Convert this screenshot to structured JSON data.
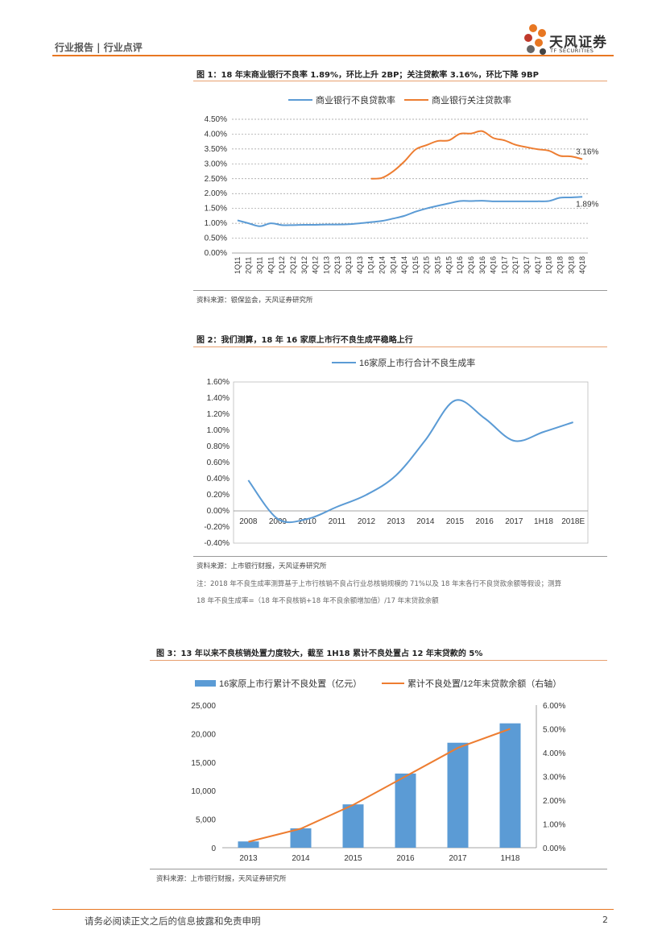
{
  "header": {
    "text": "行业报告 | 行业点评",
    "logo_cn": "天风证券",
    "logo_en": "TF SECURITIES"
  },
  "figures": {
    "fig1": {
      "title": "图 1：18 年末商业银行不良率 1.89%，环比上升 2BP；关注贷款率 3.16%，环比下降 9BP",
      "source": "资料来源：银保监会，天风证券研究所"
    },
    "fig2": {
      "title": "图 2：我们测算，18 年 16 家原上市行不良生成平稳略上行",
      "source": "资料来源：上市银行财报，天风证券研究所",
      "note1": "注：2018 年不良生成率测算基于上市行核销不良占行业总核销规模的 71%以及 18 年末各行不良贷款余额等假设；测算",
      "note2": "18 年不良生成率=（18 年不良核销+18 年不良余额增加值）/17 年末贷款余额"
    },
    "fig3": {
      "title": "图 3：13 年以来不良核销处置力度较大，截至 1H18 累计不良处置占 12 年末贷款的 5%",
      "source": "资料来源：上市银行财报，天风证券研究所"
    }
  },
  "footer": {
    "disclaimer": "请务必阅读正文之后的信息披露和免责申明",
    "page": "2"
  },
  "colors": {
    "blue": "#5B9BD5",
    "orange": "#ED7D31",
    "accent": "#E87722"
  },
  "chart_data": [
    {
      "type": "line",
      "categories": [
        "1Q11",
        "2Q11",
        "3Q11",
        "4Q11",
        "1Q12",
        "2Q12",
        "3Q12",
        "4Q12",
        "1Q13",
        "2Q13",
        "3Q13",
        "4Q13",
        "1Q14",
        "2Q14",
        "3Q14",
        "4Q14",
        "1Q15",
        "2Q15",
        "3Q15",
        "4Q15",
        "1Q16",
        "2Q16",
        "3Q16",
        "4Q16",
        "1Q17",
        "2Q17",
        "3Q17",
        "4Q17",
        "1Q18",
        "2Q18",
        "3Q18",
        "4Q18"
      ],
      "series": [
        {
          "name": "商业银行不良贷款率",
          "values": [
            1.1,
            1.0,
            0.9,
            1.0,
            0.94,
            0.94,
            0.95,
            0.95,
            0.96,
            0.96,
            0.97,
            1.0,
            1.04,
            1.08,
            1.16,
            1.25,
            1.39,
            1.5,
            1.59,
            1.67,
            1.75,
            1.75,
            1.76,
            1.74,
            1.74,
            1.74,
            1.74,
            1.74,
            1.75,
            1.86,
            1.87,
            1.89
          ]
        },
        {
          "name": "商业银行关注贷款率",
          "values": [
            null,
            null,
            null,
            null,
            null,
            null,
            null,
            null,
            null,
            null,
            null,
            null,
            2.5,
            2.53,
            2.75,
            3.08,
            3.48,
            3.63,
            3.77,
            3.79,
            4.01,
            4.02,
            4.1,
            3.87,
            3.79,
            3.64,
            3.56,
            3.49,
            3.44,
            3.27,
            3.25,
            3.16
          ]
        }
      ],
      "end_labels": [
        "1.89%",
        "3.16%"
      ],
      "yticks": [
        "0.00%",
        "0.50%",
        "1.00%",
        "1.50%",
        "2.00%",
        "2.50%",
        "3.00%",
        "3.50%",
        "4.00%",
        "4.50%"
      ],
      "ylim": [
        0,
        4.5
      ]
    },
    {
      "type": "line",
      "categories": [
        "2008",
        "2009",
        "2010",
        "2011",
        "2012",
        "2013",
        "2014",
        "2015",
        "2016",
        "2017",
        "1H18",
        "2018E"
      ],
      "series": [
        {
          "name": "16家原上市行合计不良生成率",
          "values": [
            0.38,
            -0.1,
            -0.1,
            0.05,
            0.2,
            0.44,
            0.88,
            1.37,
            1.15,
            0.87,
            0.98,
            1.1
          ]
        }
      ],
      "yticks": [
        "-0.40%",
        "-0.20%",
        "0.00%",
        "0.20%",
        "0.40%",
        "0.60%",
        "0.80%",
        "1.00%",
        "1.20%",
        "1.40%",
        "1.60%"
      ],
      "ylim": [
        -0.4,
        1.6
      ]
    },
    {
      "type": "bar",
      "categories": [
        "2013",
        "2014",
        "2015",
        "2016",
        "2017",
        "1H18"
      ],
      "series": [
        {
          "name": "16家原上市行累计不良处置（亿元）",
          "values": [
            1100,
            3400,
            7600,
            13000,
            18400,
            21800
          ]
        },
        {
          "name": "累计不良处置/12年末贷款余额（右轴）",
          "values": [
            0.25,
            0.8,
            1.8,
            3.0,
            4.2,
            5.0
          ]
        }
      ],
      "yticks_left": [
        "0",
        "5,000",
        "10,000",
        "15,000",
        "20,000",
        "25,000"
      ],
      "yticks_right": [
        "0.00%",
        "1.00%",
        "2.00%",
        "3.00%",
        "4.00%",
        "5.00%",
        "6.00%"
      ],
      "ylim_left": [
        0,
        25000
      ],
      "ylim_right": [
        0,
        6
      ]
    }
  ]
}
